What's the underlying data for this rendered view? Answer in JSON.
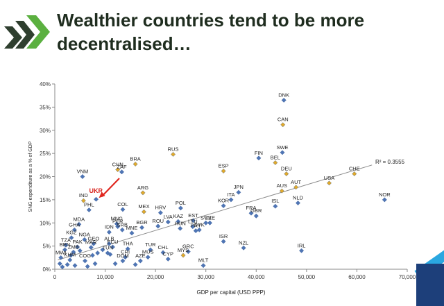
{
  "slide": {
    "title_line1": "Wealthier countries tend to be more",
    "title_line2": "decentralised…"
  },
  "colors": {
    "blue_point": "#4f75b5",
    "orange_point": "#e0a92c",
    "arrow": "#e0271f",
    "highlight_label": "#d9231d",
    "trendline": "#8c8c8c",
    "logo_green": "#5bb040",
    "logo_dark": "#2f3f2f"
  },
  "chart_data": {
    "type": "scatter",
    "xlabel": "GDP per capital (USD PPP)",
    "ylabel": "SNG expenditure as a % of GDP",
    "xlim": [
      0,
      70000
    ],
    "ylim": [
      0,
      0.4
    ],
    "x_ticks": [
      0,
      10000,
      20000,
      30000,
      40000,
      50000,
      60000,
      70000
    ],
    "x_tick_labels": [
      "0",
      "10,000",
      "20,000",
      "30,000",
      "40,000",
      "50,000",
      "60,000",
      "70,000"
    ],
    "y_ticks": [
      0,
      0.05,
      0.1,
      0.15,
      0.2,
      0.25,
      0.3,
      0.35,
      0.4
    ],
    "y_tick_labels": [
      "0%",
      "5%",
      "10%",
      "15%",
      "20%",
      "25%",
      "30%",
      "35%",
      "40%"
    ],
    "grid": false,
    "r2_label": "R² = 0.3555",
    "trendline": {
      "x0": 600,
      "y0": 0.02,
      "x1": 63000,
      "y1": 0.225
    },
    "highlight": {
      "label": "UKR",
      "x": 8200,
      "y": 0.151
    },
    "points": [
      {
        "label": "DNK",
        "x": 45500,
        "y": 0.365,
        "color": "blue"
      },
      {
        "label": "CAN",
        "x": 45300,
        "y": 0.312,
        "color": "orange"
      },
      {
        "label": "SWE",
        "x": 45200,
        "y": 0.252,
        "color": "blue"
      },
      {
        "label": "FIN",
        "x": 40500,
        "y": 0.24,
        "color": "blue"
      },
      {
        "label": "BEL",
        "x": 43800,
        "y": 0.23,
        "color": "orange"
      },
      {
        "label": "DEU",
        "x": 46000,
        "y": 0.206,
        "color": "orange"
      },
      {
        "label": "AUT",
        "x": 47900,
        "y": 0.177,
        "color": "orange"
      },
      {
        "label": "AUS",
        "x": 45100,
        "y": 0.169,
        "color": "orange"
      },
      {
        "label": "NLD",
        "x": 48300,
        "y": 0.143,
        "color": "blue"
      },
      {
        "label": "ISL",
        "x": 43800,
        "y": 0.136,
        "color": "blue"
      },
      {
        "label": "USA",
        "x": 54500,
        "y": 0.186,
        "color": "orange"
      },
      {
        "label": "CHE",
        "x": 59500,
        "y": 0.206,
        "color": "orange"
      },
      {
        "label": "NOR",
        "x": 65500,
        "y": 0.15,
        "color": "blue"
      },
      {
        "label": "IRL",
        "x": 49000,
        "y": 0.04,
        "color": "blue"
      },
      {
        "label": "RUS",
        "x": 23500,
        "y": 0.248,
        "color": "orange"
      },
      {
        "label": "ESP",
        "x": 33500,
        "y": 0.212,
        "color": "orange"
      },
      {
        "label": "JPN",
        "x": 36500,
        "y": 0.166,
        "color": "blue"
      },
      {
        "label": "ITA",
        "x": 35000,
        "y": 0.15,
        "color": "blue"
      },
      {
        "label": "KOR",
        "x": 33500,
        "y": 0.137,
        "color": "blue"
      },
      {
        "label": "FRA",
        "x": 39000,
        "y": 0.121,
        "color": "blue"
      },
      {
        "label": "GBR",
        "x": 40000,
        "y": 0.115,
        "color": "blue"
      },
      {
        "label": "ISR",
        "x": 33500,
        "y": 0.06,
        "color": "blue"
      },
      {
        "label": "NZL",
        "x": 37500,
        "y": 0.046,
        "color": "blue"
      },
      {
        "label": "MLT",
        "x": 29500,
        "y": 0.008,
        "color": "blue"
      },
      {
        "label": "BRA",
        "x": 16000,
        "y": 0.227,
        "color": "orange"
      },
      {
        "label": "ZAF",
        "x": 13300,
        "y": 0.21,
        "color": "blue"
      },
      {
        "label": "CHN",
        "x": 12500,
        "y": 0.215,
        "color": "orange"
      },
      {
        "label": "VNM",
        "x": 5500,
        "y": 0.2,
        "color": "blue"
      },
      {
        "label": "ARG",
        "x": 17500,
        "y": 0.165,
        "color": "orange"
      },
      {
        "label": "IND",
        "x": 5700,
        "y": 0.148,
        "color": "orange"
      },
      {
        "label": "PHL",
        "x": 6800,
        "y": 0.128,
        "color": "blue"
      },
      {
        "label": "COL",
        "x": 13500,
        "y": 0.129,
        "color": "blue"
      },
      {
        "label": "MEX",
        "x": 17700,
        "y": 0.124,
        "color": "orange"
      },
      {
        "label": "HRV",
        "x": 21000,
        "y": 0.122,
        "color": "blue"
      },
      {
        "label": "POL",
        "x": 25000,
        "y": 0.132,
        "color": "blue"
      },
      {
        "label": "LVA",
        "x": 22500,
        "y": 0.102,
        "color": "blue"
      },
      {
        "label": "KAZ",
        "x": 24500,
        "y": 0.103,
        "color": "blue"
      },
      {
        "label": "EST",
        "x": 27500,
        "y": 0.105,
        "color": "blue"
      },
      {
        "label": "SVN",
        "x": 30000,
        "y": 0.1,
        "color": "blue"
      },
      {
        "label": "CZE",
        "x": 30800,
        "y": 0.1,
        "color": "blue"
      },
      {
        "label": "LTU",
        "x": 27400,
        "y": 0.092,
        "color": "blue"
      },
      {
        "label": "HUN",
        "x": 24900,
        "y": 0.088,
        "color": "blue"
      },
      {
        "label": "PRT",
        "x": 28000,
        "y": 0.083,
        "color": "blue"
      },
      {
        "label": "SVK",
        "x": 28700,
        "y": 0.085,
        "color": "blue"
      },
      {
        "label": "ROU",
        "x": 20500,
        "y": 0.093,
        "color": "blue"
      },
      {
        "label": "BGR",
        "x": 17300,
        "y": 0.09,
        "color": "blue"
      },
      {
        "label": "MNG",
        "x": 12300,
        "y": 0.098,
        "color": "blue"
      },
      {
        "label": "PER",
        "x": 12500,
        "y": 0.092,
        "color": "blue"
      },
      {
        "label": "SRB",
        "x": 13400,
        "y": 0.085,
        "color": "blue"
      },
      {
        "label": "IDN",
        "x": 10800,
        "y": 0.08,
        "color": "blue"
      },
      {
        "label": "MNE",
        "x": 15300,
        "y": 0.078,
        "color": "blue"
      },
      {
        "label": "MDA",
        "x": 4800,
        "y": 0.097,
        "color": "blue"
      },
      {
        "label": "GHA",
        "x": 3900,
        "y": 0.085,
        "color": "blue"
      },
      {
        "label": "KGZ",
        "x": 3300,
        "y": 0.068,
        "color": "blue"
      },
      {
        "label": "NGA",
        "x": 5900,
        "y": 0.064,
        "color": "blue"
      },
      {
        "label": "GEO",
        "x": 7700,
        "y": 0.055,
        "color": "blue"
      },
      {
        "label": "ALB",
        "x": 10800,
        "y": 0.055,
        "color": "blue"
      },
      {
        "label": "ECU",
        "x": 11500,
        "y": 0.048,
        "color": "blue"
      },
      {
        "label": "THA",
        "x": 14500,
        "y": 0.044,
        "color": "blue"
      },
      {
        "label": "TUR",
        "x": 19000,
        "y": 0.042,
        "color": "blue"
      },
      {
        "label": "CHL",
        "x": 21500,
        "y": 0.036,
        "color": "blue"
      },
      {
        "label": "MYS",
        "x": 25500,
        "y": 0.03,
        "color": "orange"
      },
      {
        "label": "GRC",
        "x": 26500,
        "y": 0.038,
        "color": "blue"
      },
      {
        "label": "TZA",
        "x": 2200,
        "y": 0.052,
        "color": "blue"
      },
      {
        "label": "PAK",
        "x": 4500,
        "y": 0.048,
        "color": "blue"
      },
      {
        "label": "MAR",
        "x": 7200,
        "y": 0.047,
        "color": "blue"
      },
      {
        "label": "TUN",
        "x": 10500,
        "y": 0.035,
        "color": "blue"
      },
      {
        "label": "CRI",
        "x": 14000,
        "y": 0.026,
        "color": "blue"
      },
      {
        "label": "DOM",
        "x": 13500,
        "y": 0.018,
        "color": "blue"
      },
      {
        "label": "AZE",
        "x": 17000,
        "y": 0.018,
        "color": "blue"
      },
      {
        "label": "MUS",
        "x": 18500,
        "y": 0.026,
        "color": "blue"
      },
      {
        "label": "CYP",
        "x": 22500,
        "y": 0.022,
        "color": "blue"
      },
      {
        "label": "KHM",
        "x": 3000,
        "y": 0.02,
        "color": "blue"
      },
      {
        "label": "COG",
        "x": 6000,
        "y": 0.018,
        "color": "blue"
      },
      {
        "label": "MWI",
        "x": 1200,
        "y": 0.025,
        "color": "blue"
      },
      {
        "label": "ZMB",
        "x": 3700,
        "y": 0.037,
        "color": "blue"
      },
      {
        "label": "BEN",
        "x": 2000,
        "y": 0.042,
        "color": "blue"
      },
      {
        "label": "",
        "x": 1000,
        "y": 0.012,
        "color": "blue"
      },
      {
        "label": "",
        "x": 1500,
        "y": 0.005,
        "color": "blue"
      },
      {
        "label": "",
        "x": 2500,
        "y": 0.01,
        "color": "blue"
      },
      {
        "label": "",
        "x": 3200,
        "y": 0.03,
        "color": "blue"
      },
      {
        "label": "",
        "x": 4000,
        "y": 0.008,
        "color": "blue"
      },
      {
        "label": "",
        "x": 6500,
        "y": 0.006,
        "color": "blue"
      },
      {
        "label": "",
        "x": 7500,
        "y": 0.03,
        "color": "blue"
      },
      {
        "label": "",
        "x": 8500,
        "y": 0.035,
        "color": "blue"
      },
      {
        "label": "",
        "x": 9500,
        "y": 0.042,
        "color": "blue"
      },
      {
        "label": "",
        "x": 11000,
        "y": 0.032,
        "color": "blue"
      },
      {
        "label": "",
        "x": 12000,
        "y": 0.012,
        "color": "blue"
      },
      {
        "label": "",
        "x": 16000,
        "y": 0.01,
        "color": "blue"
      },
      {
        "label": "",
        "x": 8000,
        "y": 0.012,
        "color": "blue"
      },
      {
        "label": "",
        "x": 5000,
        "y": 0.04,
        "color": "blue"
      }
    ]
  }
}
